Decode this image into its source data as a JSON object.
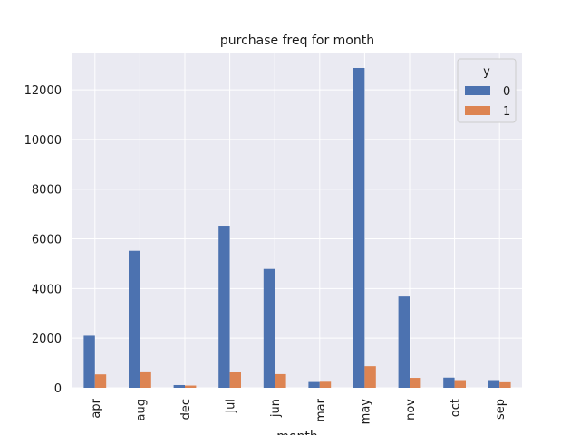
{
  "chart_data": {
    "type": "bar",
    "title": "purchase freq for month",
    "xlabel": "month",
    "ylabel": "",
    "categories": [
      "apr",
      "aug",
      "dec",
      "jul",
      "jun",
      "mar",
      "may",
      "nov",
      "oct",
      "sep"
    ],
    "series": [
      {
        "name": "0",
        "color": "#4c72b0",
        "values": [
          2100,
          5520,
          110,
          6530,
          4790,
          270,
          12880,
          3680,
          410,
          310
        ]
      },
      {
        "name": "1",
        "color": "#dd8452",
        "values": [
          540,
          660,
          90,
          650,
          550,
          280,
          870,
          400,
          310,
          260
        ]
      }
    ],
    "ylim": [
      0,
      13500
    ],
    "yticks": [
      0,
      2000,
      4000,
      6000,
      8000,
      10000,
      12000
    ],
    "grid": true,
    "legend": {
      "title": "y",
      "position": "top-right"
    },
    "background": "#eaeaf2",
    "grid_color": "#ffffff"
  }
}
